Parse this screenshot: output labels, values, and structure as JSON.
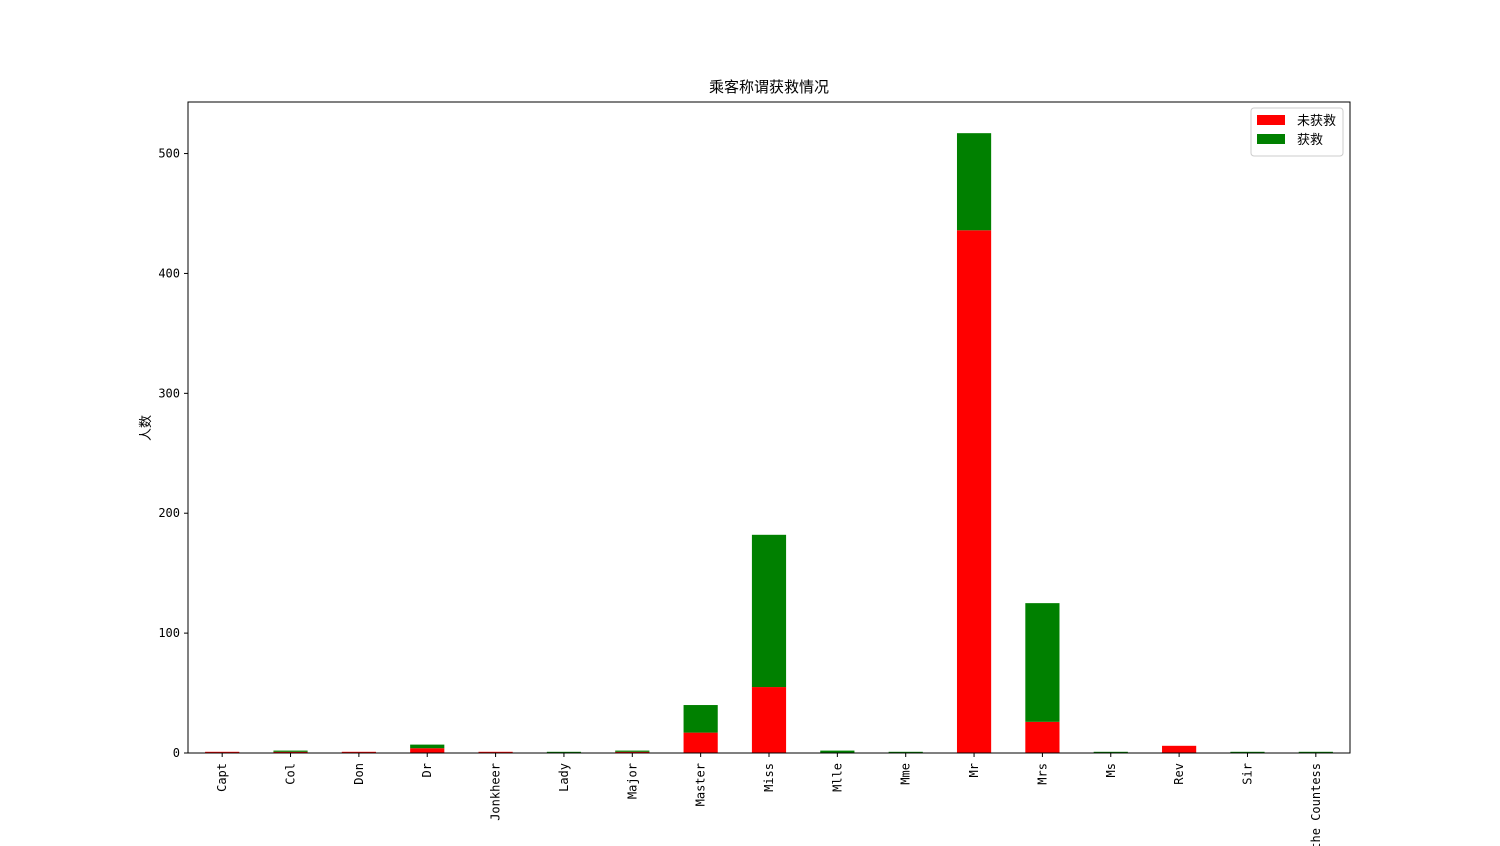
{
  "chart_data": {
    "type": "bar",
    "stacked": true,
    "title": "乘客称谓获救情况",
    "xlabel": "",
    "ylabel": "人数",
    "categories": [
      "Capt",
      "Col",
      "Don",
      "Dr",
      "Jonkheer",
      "Lady",
      "Major",
      "Master",
      "Miss",
      "Mlle",
      "Mme",
      "Mr",
      "Mrs",
      "Ms",
      "Rev",
      "Sir",
      "the Countess"
    ],
    "series": [
      {
        "name": "未获救",
        "color": "#ff0000",
        "values": [
          1,
          1,
          1,
          4,
          1,
          0,
          1,
          17,
          55,
          0,
          0,
          436,
          26,
          0,
          6,
          0,
          0
        ]
      },
      {
        "name": "获救",
        "color": "#008000",
        "values": [
          0,
          1,
          0,
          3,
          0,
          1,
          1,
          23,
          127,
          2,
          1,
          81,
          99,
          1,
          0,
          1,
          1
        ]
      }
    ],
    "ylim": [
      0,
      543
    ],
    "yticks": [
      0,
      100,
      200,
      300,
      400,
      500
    ],
    "grid": false,
    "legend_position": "top-right"
  }
}
